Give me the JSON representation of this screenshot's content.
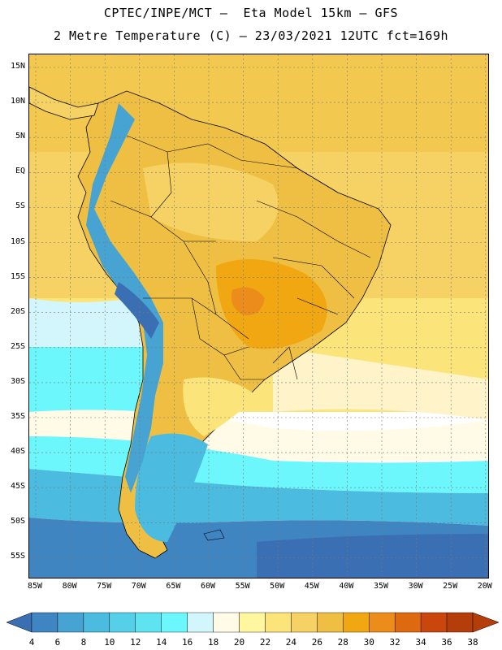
{
  "header": {
    "title_line1": "CPTEC/INPE/MCT –  Eta Model 15km – GFS",
    "title_line2": "2 Metre Temperature (C) – 23/03/2021 12UTC fct=169h"
  },
  "map": {
    "latitude_labels": [
      "15N",
      "10N",
      "5N",
      "EQ",
      "5S",
      "10S",
      "15S",
      "20S",
      "25S",
      "30S",
      "35S",
      "40S",
      "45S",
      "50S",
      "55S"
    ],
    "longitude_labels": [
      "85W",
      "80W",
      "75W",
      "70W",
      "65W",
      "60W",
      "55W",
      "50W",
      "45W",
      "40W",
      "35W",
      "30W",
      "25W",
      "20W"
    ],
    "lat_range": [
      15,
      -55
    ],
    "lon_range": [
      -85,
      -20
    ],
    "variable": "2 Metre Temperature",
    "units": "C"
  },
  "colorbar": {
    "labels": [
      "4",
      "6",
      "8",
      "10",
      "12",
      "14",
      "16",
      "18",
      "20",
      "22",
      "24",
      "26",
      "28",
      "30",
      "32",
      "34",
      "36",
      "38"
    ],
    "colors": [
      "#3a6fb4",
      "#3f85c2",
      "#47a3d2",
      "#4cbbe0",
      "#56cfe8",
      "#5fe3f1",
      "#6cf7fc",
      "#d3f6fd",
      "#fffbe6",
      "#fff7a0",
      "#fbe57a",
      "#f5d263",
      "#efbf44",
      "#f1a712",
      "#eb8c1b",
      "#de6a10",
      "#c9460c",
      "#b53d0a"
    ]
  },
  "icons": {
    "left_arrow": "colorbar-left-arrow-icon",
    "right_arrow": "colorbar-right-arrow-icon"
  }
}
